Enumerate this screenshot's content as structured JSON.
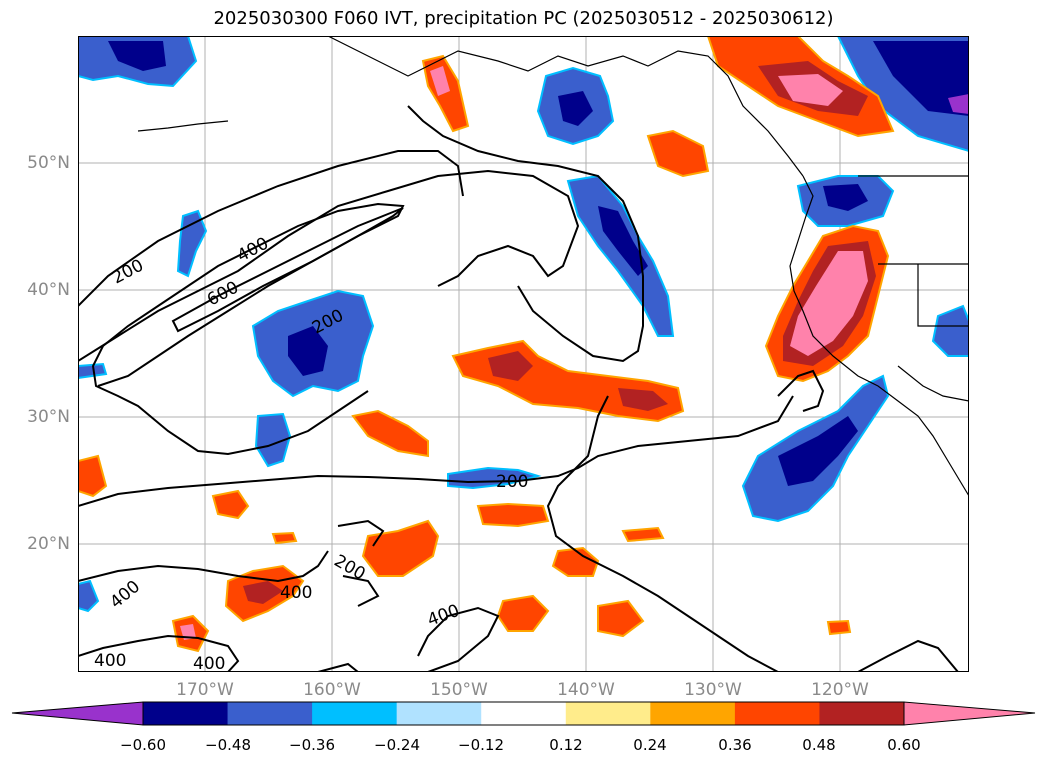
{
  "title": "2025030300 F060 IVT, precipitation PC (2025030512 - 2025030612)",
  "latitude_labels": [
    "50°N",
    "40°N",
    "30°N",
    "20°N"
  ],
  "longitude_labels": [
    "170°W",
    "160°W",
    "150°W",
    "140°W",
    "130°W",
    "120°W"
  ],
  "contour_labels": [
    "200",
    "400",
    "600",
    "200",
    "200",
    "200",
    "400",
    "400",
    "400",
    "400",
    "400"
  ],
  "colorbar": {
    "tick_labels": [
      "−0.60",
      "−0.48",
      "−0.36",
      "−0.24",
      "−0.12",
      "0.12",
      "0.24",
      "0.36",
      "0.48",
      "0.60"
    ],
    "colors": [
      "#9932cc",
      "#00008b",
      "#3a5fcd",
      "#00bfff",
      "#b0e2ff",
      "#ffffff",
      "#ffec8b",
      "#ffa500",
      "#ff4500",
      "#b22222",
      "#ff82ab"
    ]
  },
  "legend_colors": {
    "neg_strong": "#00008b",
    "neg_mid": "#3a5fcd",
    "neg_light": "#00bfff",
    "neg_pale": "#b0e2ff",
    "pos_pale": "#ffec8b",
    "pos_light": "#ffa500",
    "pos_mid": "#ff4500",
    "pos_strong": "#b22222",
    "pos_max": "#ff82ab"
  }
}
